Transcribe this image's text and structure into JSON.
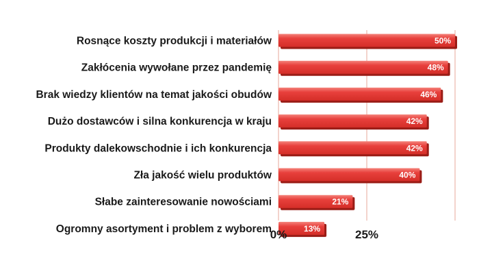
{
  "chart_data": {
    "type": "bar",
    "orientation": "horizontal",
    "categories": [
      "Rosnące koszty produkcji i materiałów",
      "Zakłócenia wywołane przez pandemię",
      "Brak wiedzy klientów na temat jakości obudów",
      "Dużo dostawców i silna konkurencja w kraju",
      "Produkty dalekowschodnie i ich konkurencja",
      "Zła jakość wielu produktów",
      "Słabe zainteresowanie nowościami",
      "Ogromny asortyment i problem z wyborem"
    ],
    "values": [
      50,
      48,
      46,
      42,
      42,
      40,
      21,
      13
    ],
    "value_labels": [
      "50%",
      "48%",
      "46%",
      "42%",
      "42%",
      "40%",
      "21%",
      "13%"
    ],
    "xlim": [
      0,
      50
    ],
    "xticks": [
      0,
      25
    ],
    "xtick_labels": [
      "0%",
      "25%"
    ],
    "title": "",
    "xlabel": "",
    "ylabel": "",
    "grid": "vertical",
    "legend": "none",
    "colors": {
      "bar": "#e8403c",
      "bar_shadow": "#9a1c16",
      "bar_highlight": "#f4827a",
      "grid": "#e7a79a",
      "axis": "#e7a79a"
    }
  }
}
